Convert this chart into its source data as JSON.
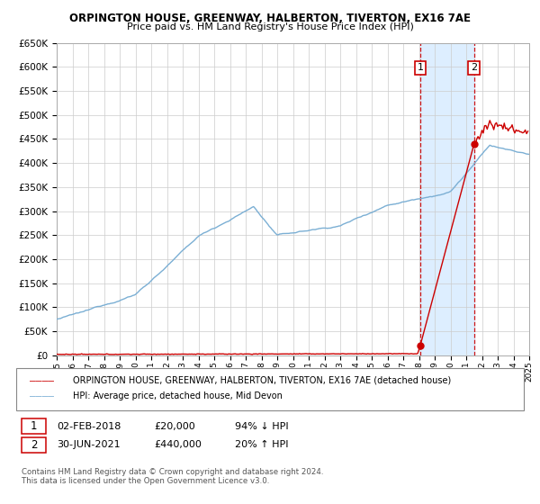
{
  "title": "ORPINGTON HOUSE, GREENWAY, HALBERTON, TIVERTON, EX16 7AE",
  "subtitle": "Price paid vs. HM Land Registry's House Price Index (HPI)",
  "legend_line1": "ORPINGTON HOUSE, GREENWAY, HALBERTON, TIVERTON, EX16 7AE (detached house)",
  "legend_line2": "HPI: Average price, detached house, Mid Devon",
  "annotation1_label": "1",
  "annotation1_date": "02-FEB-2018",
  "annotation1_price": "£20,000",
  "annotation1_hpi": "94% ↓ HPI",
  "annotation2_label": "2",
  "annotation2_date": "30-JUN-2021",
  "annotation2_price": "£440,000",
  "annotation2_hpi": "20% ↑ HPI",
  "footer": "Contains HM Land Registry data © Crown copyright and database right 2024.\nThis data is licensed under the Open Government Licence v3.0.",
  "hpi_color": "#7bafd4",
  "property_color": "#cc0000",
  "span_color": "#ddeeff",
  "sale1_x": 2018.08,
  "sale1_y": 20000,
  "sale2_x": 2021.5,
  "sale2_y": 440000,
  "xmin": 1995,
  "xmax": 2025,
  "ymin": 0,
  "ymax": 650000,
  "yticks": [
    0,
    50000,
    100000,
    150000,
    200000,
    250000,
    300000,
    350000,
    400000,
    450000,
    500000,
    550000,
    600000,
    650000
  ]
}
